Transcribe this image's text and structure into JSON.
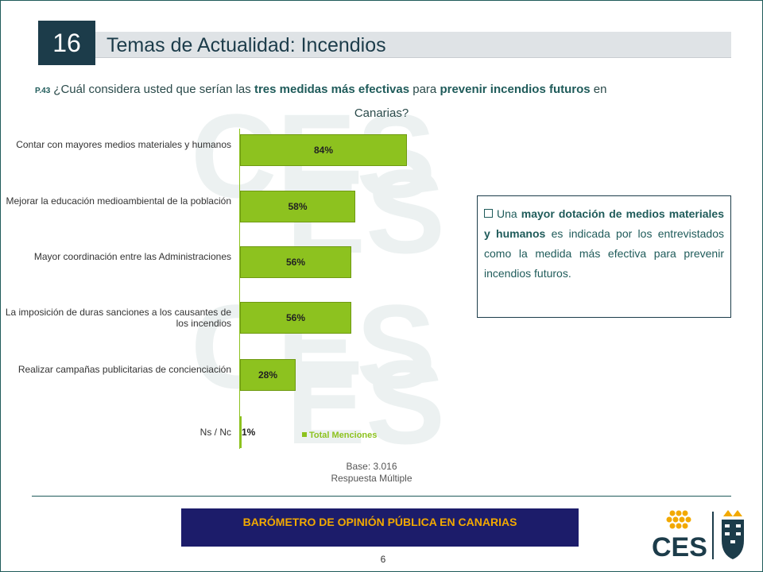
{
  "header": {
    "slide_number": "16",
    "title": "Temas de Actualidad: Incendios"
  },
  "question": {
    "code": "P.43",
    "text_before": "¿Cuál considera usted que serían las ",
    "bold_1": "tres medidas más efectivas",
    "text_mid": " para ",
    "bold_2": "prevenir incendios futuros",
    "text_after": " en",
    "line2": "Canarias?"
  },
  "chart_data": {
    "type": "bar",
    "orientation": "horizontal",
    "categories": [
      "Contar con mayores medios materiales y humanos",
      "Mejorar la educación medioambiental de la población",
      "Mayor coordinación entre las Administraciones",
      "La imposición de duras sanciones a los causantes de los incendios",
      "Realizar campañas publicitarias de concienciación",
      "Ns / Nc"
    ],
    "series": [
      {
        "name": "Total Menciones",
        "values": [
          84,
          58,
          56,
          56,
          28,
          1
        ]
      }
    ],
    "value_labels": [
      "84%",
      "58%",
      "56%",
      "56%",
      "28%",
      "1%"
    ],
    "xlim": [
      0,
      100
    ],
    "bar_color": "#8dc21f",
    "legend_position": "bottom"
  },
  "base_note": {
    "line1": "Base: 3.016",
    "line2": "Respuesta Múltiple"
  },
  "callout": {
    "text_before": "Una ",
    "bold": "mayor dotación de medios materiales y humanos",
    "text_after": " es indicada por los entrevistados como la medida más efectiva para prevenir incendios futuros."
  },
  "footer": {
    "banner": "BARÓMETRO DE OPINIÓN PÚBLICA EN CANARIAS",
    "page": "6",
    "logo_text": "CES"
  },
  "colors": {
    "accent_dark": "#1c3c4a",
    "teal": "#1f5b5a",
    "bar": "#8dc21f",
    "banner_bg": "#1c1c6a",
    "banner_text": "#f2a900"
  }
}
